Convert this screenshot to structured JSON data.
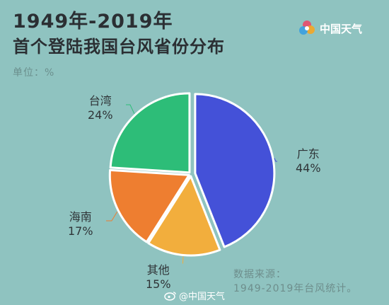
{
  "header": {
    "title_line1": "1949年-2019年",
    "title_line2": "首个登陆我国台风省份分布",
    "unit": "单位：%"
  },
  "logo": {
    "name": "中国天气",
    "icon": "pinwheel-icon"
  },
  "chart_data": {
    "type": "pie",
    "labels": [
      "广东",
      "其他",
      "海南",
      "台湾"
    ],
    "values": [
      44,
      15,
      17,
      24
    ],
    "value_labels": [
      "44%",
      "15%",
      "17%",
      "24%"
    ],
    "colors": [
      "#4451d8",
      "#f2ae3d",
      "#ee7e30",
      "#2dbd78"
    ]
  },
  "source": {
    "line1": "数据来源：",
    "line2": "1949-2019年台风统计。"
  },
  "watermark": {
    "text": "@中国天气",
    "icon": "weibo-icon"
  }
}
